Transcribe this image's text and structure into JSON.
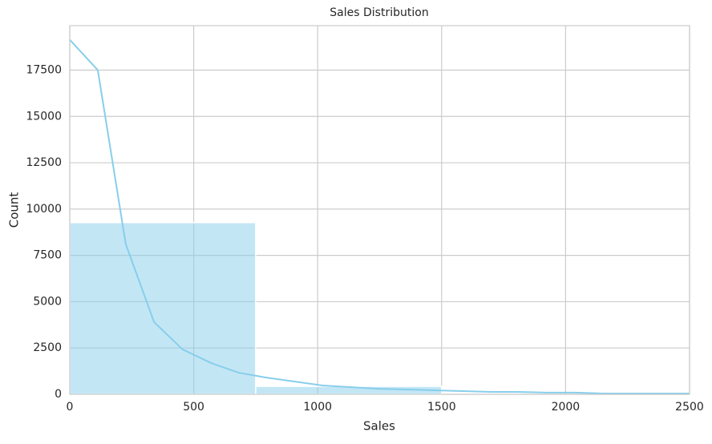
{
  "chart_data": {
    "type": "histogram",
    "title": "Sales Distribution",
    "x_label": "Sales",
    "y_label": "Count",
    "bins": [
      0,
      750,
      1500
    ],
    "counts": [
      9270,
      430
    ],
    "color": "#87ceeb",
    "kde": {
      "x": [
        0,
        113,
        226,
        340,
        455,
        570,
        680,
        790,
        905,
        1020,
        1130,
        1245,
        1360,
        1470,
        1585,
        1700,
        1810,
        1925,
        2040,
        2150,
        2265,
        2380,
        2500
      ],
      "values": [
        19140,
        17500,
        8100,
        3900,
        2425,
        1690,
        1170,
        910,
        690,
        475,
        390,
        300,
        260,
        215,
        175,
        130,
        130,
        90,
        90,
        45,
        45,
        45,
        45
      ]
    },
    "xlim": [
      0,
      2500
    ],
    "ylim": [
      0,
      19900
    ],
    "xticks": [
      0,
      500,
      1000,
      1500,
      2000,
      2500
    ],
    "yticks": [
      0,
      2500,
      5000,
      7500,
      10000,
      12500,
      15000,
      17500
    ],
    "grid": true
  }
}
